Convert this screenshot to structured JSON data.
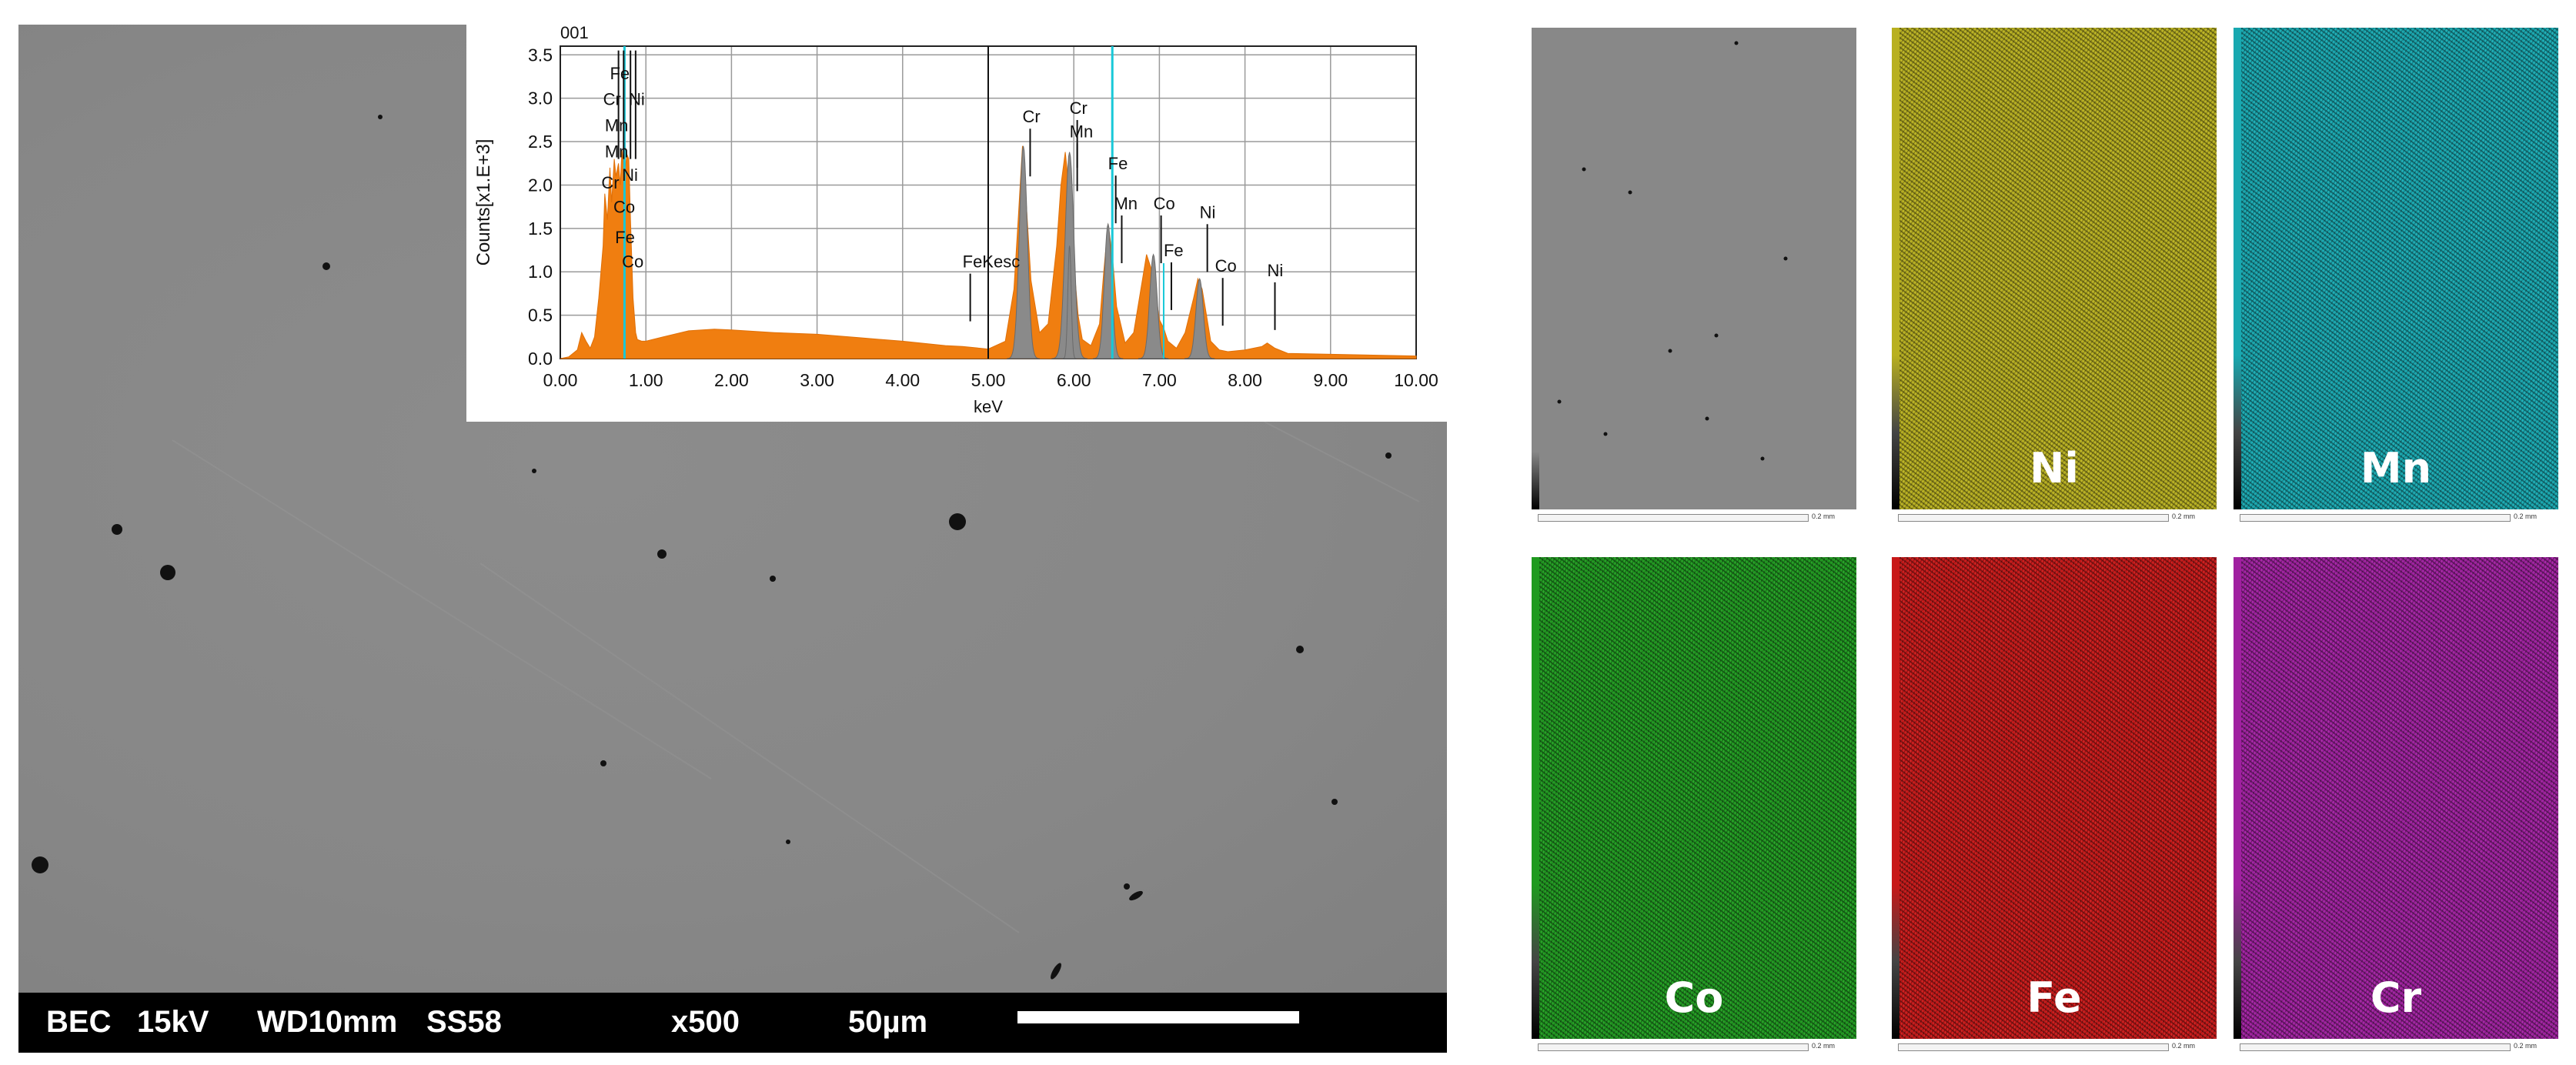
{
  "sem_image": {
    "info_bar": {
      "mode": "BEC",
      "voltage": "15kV",
      "working_distance": "WD10mm",
      "spot_size": "SS58",
      "magnification": "x500",
      "scale": "50µm"
    }
  },
  "spectrum": {
    "id": "001",
    "ylabel": "Counts[x1.E+3]",
    "xlabel": "keV",
    "x_ticks": [
      "0.00",
      "1.00",
      "2.00",
      "3.00",
      "4.00",
      "5.00",
      "6.00",
      "7.00",
      "8.00",
      "9.00",
      "10.00"
    ],
    "y_ticks": [
      "0.0",
      "0.5",
      "1.0",
      "1.5",
      "2.0",
      "2.5",
      "3.0",
      "3.5"
    ],
    "peak_labels": [
      {
        "text": "Fe",
        "kev": 0.58,
        "y": 3.22
      },
      {
        "text": "Cr",
        "kev": 0.5,
        "y": 2.92
      },
      {
        "text": "Ni",
        "kev": 0.8,
        "y": 2.92
      },
      {
        "text": "Mn",
        "kev": 0.52,
        "y": 2.62
      },
      {
        "text": "Mn",
        "kev": 0.52,
        "y": 2.32
      },
      {
        "text": "Ni",
        "kev": 0.72,
        "y": 2.05
      },
      {
        "text": "Cr",
        "kev": 0.48,
        "y": 1.96
      },
      {
        "text": "Co",
        "kev": 0.62,
        "y": 1.68
      },
      {
        "text": "Fe",
        "kev": 0.64,
        "y": 1.33
      },
      {
        "text": "Co",
        "kev": 0.72,
        "y": 1.05
      },
      {
        "text": "FeKesc",
        "kev": 4.7,
        "y": 1.05
      },
      {
        "text": "Cr",
        "kev": 5.4,
        "y": 2.72
      },
      {
        "text": "Cr",
        "kev": 5.95,
        "y": 2.82
      },
      {
        "text": "Mn",
        "kev": 5.95,
        "y": 2.55
      },
      {
        "text": "Fe",
        "kev": 6.4,
        "y": 2.18
      },
      {
        "text": "Mn",
        "kev": 6.47,
        "y": 1.72
      },
      {
        "text": "Co",
        "kev": 6.93,
        "y": 1.72
      },
      {
        "text": "Fe",
        "kev": 7.05,
        "y": 1.18
      },
      {
        "text": "Ni",
        "kev": 7.47,
        "y": 1.62
      },
      {
        "text": "Co",
        "kev": 7.65,
        "y": 1.0
      },
      {
        "text": "Ni",
        "kev": 8.26,
        "y": 0.95
      }
    ]
  },
  "chart_data": {
    "type": "area",
    "title": "001",
    "xlabel": "keV",
    "ylabel": "Counts[x1.E+3]",
    "xlim": [
      0,
      10
    ],
    "ylim": [
      0,
      3.6
    ],
    "grid": true,
    "series": [
      {
        "x": [
          0,
          0.1,
          0.2,
          0.25,
          0.3,
          0.35,
          0.4,
          0.45,
          0.5,
          0.52,
          0.55,
          0.58,
          0.6,
          0.63,
          0.65,
          0.68,
          0.7,
          0.72,
          0.75,
          0.78,
          0.8,
          0.82,
          0.85,
          0.88,
          0.9,
          0.95,
          1.0,
          1.2,
          1.5,
          1.8,
          2.0,
          2.5,
          3.0,
          3.5,
          4.0,
          4.5,
          4.7,
          4.9,
          5.0,
          5.2,
          5.3,
          5.35,
          5.4,
          5.45,
          5.5,
          5.6,
          5.7,
          5.8,
          5.85,
          5.9,
          5.95,
          6.0,
          6.05,
          6.1,
          6.2,
          6.3,
          6.35,
          6.4,
          6.45,
          6.5,
          6.6,
          6.7,
          6.8,
          6.85,
          6.9,
          6.95,
          7.0,
          7.05,
          7.1,
          7.2,
          7.3,
          7.4,
          7.45,
          7.5,
          7.55,
          7.6,
          7.7,
          7.8,
          8.0,
          8.2,
          8.26,
          8.35,
          8.5,
          9.0,
          9.5,
          10.0
        ],
        "values": [
          0,
          0.02,
          0.1,
          0.3,
          0.2,
          0.12,
          0.25,
          0.7,
          1.3,
          1.9,
          1.6,
          2.2,
          1.8,
          2.3,
          2.1,
          2.25,
          2.0,
          2.4,
          2.15,
          2.35,
          2.3,
          1.6,
          0.7,
          0.3,
          0.22,
          0.2,
          0.2,
          0.25,
          0.32,
          0.34,
          0.33,
          0.3,
          0.28,
          0.24,
          0.2,
          0.15,
          0.14,
          0.12,
          0.11,
          0.2,
          0.8,
          1.6,
          2.45,
          1.7,
          0.9,
          0.3,
          0.4,
          1.3,
          2.0,
          2.38,
          1.9,
          1.1,
          0.5,
          0.22,
          0.15,
          0.4,
          1.0,
          1.55,
          1.2,
          0.6,
          0.18,
          0.3,
          0.9,
          1.2,
          1.05,
          0.8,
          0.45,
          0.35,
          0.2,
          0.12,
          0.3,
          0.7,
          0.92,
          0.8,
          0.5,
          0.2,
          0.1,
          0.08,
          0.1,
          0.14,
          0.18,
          0.12,
          0.06,
          0.05,
          0.04,
          0.03
        ]
      }
    ]
  },
  "maps": [
    {
      "element": "",
      "color": "#808080"
    },
    {
      "element": "Ni",
      "color": "#b8b020"
    },
    {
      "element": "Mn",
      "color": "#18a8b0"
    },
    {
      "element": "Co",
      "color": "#1f9a1f"
    },
    {
      "element": "Fe",
      "color": "#c81818"
    },
    {
      "element": "Cr",
      "color": "#a020a0"
    }
  ],
  "map_scale_text": "0.2 mm"
}
